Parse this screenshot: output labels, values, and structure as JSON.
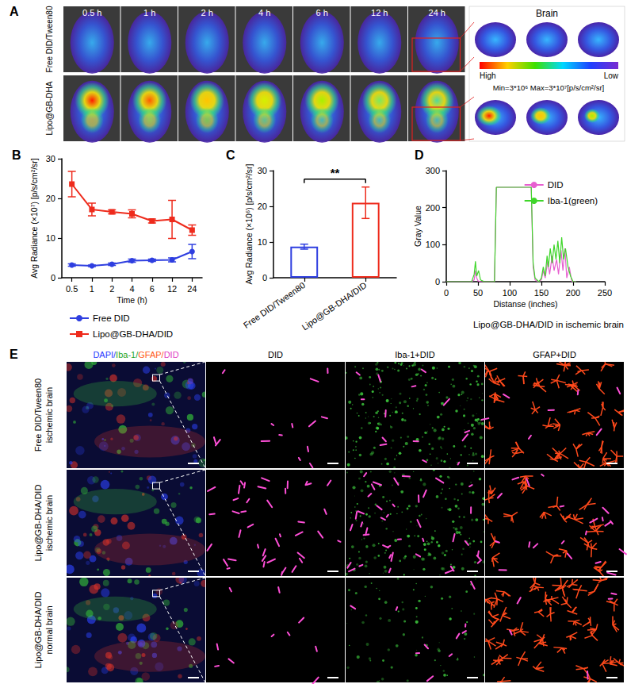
{
  "chart_data": [
    {
      "type": "line",
      "title": "B",
      "x_label": "Time (h)",
      "y_label": "Avg Radiance (×10⁷) [p/s/cm²/sr]",
      "categories": [
        "0.5",
        "1",
        "2",
        "4",
        "6",
        "12",
        "24"
      ],
      "series": [
        {
          "name": "Free DID",
          "color": "#2f3fe0",
          "marker": "circle",
          "values": [
            3.2,
            3.0,
            3.4,
            4.3,
            4.4,
            4.5,
            6.6
          ],
          "errors": [
            0.3,
            0.2,
            0.3,
            0.4,
            0.3,
            0.5,
            1.8
          ]
        },
        {
          "name": "Lipo@GB-DHA/DID",
          "color": "#ee2b1c",
          "marker": "square",
          "values": [
            23.6,
            17.2,
            16.6,
            16.1,
            14.3,
            14.7,
            12.0
          ],
          "errors": [
            3.2,
            1.6,
            0.5,
            1.0,
            0.5,
            4.8,
            1.3
          ]
        }
      ],
      "ylim": [
        0,
        30
      ],
      "yticks": [
        0,
        10,
        20,
        30
      ],
      "grid": false,
      "legend": "bottom"
    },
    {
      "type": "bar",
      "title": "C",
      "y_label": "Avg Radiance (×10⁶) [p/s/cm²/sr]",
      "categories": [
        "Free DID/Tween80",
        "Lipo@GB-DHA/DID"
      ],
      "values": [
        8.7,
        21.0
      ],
      "errors": [
        0.7,
        4.4
      ],
      "colors": [
        "#2f3fe0",
        "#ee2b1c"
      ],
      "ylim": [
        0,
        30
      ],
      "yticks": [
        0,
        10,
        20,
        30
      ],
      "grid": false,
      "annotations": [
        "**"
      ]
    },
    {
      "type": "line",
      "title": "D",
      "x_label": "Distanse (inches)",
      "y_label": "Gray Value",
      "series": [
        {
          "name": "DID",
          "color": "#e75fd0",
          "marker": "none",
          "x": [
            0,
            40,
            44,
            46,
            48,
            50,
            55,
            70,
            76,
            79,
            134,
            137,
            140,
            145,
            150,
            153,
            156,
            160,
            163,
            167,
            170,
            174,
            177,
            181,
            184,
            187,
            190,
            194,
            198,
            205
          ],
          "values": [
            0,
            0,
            5,
            30,
            10,
            2,
            0,
            0,
            0,
            255,
            255,
            40,
            5,
            0,
            5,
            30,
            10,
            55,
            20,
            70,
            30,
            60,
            20,
            85,
            30,
            90,
            10,
            40,
            0,
            0
          ]
        },
        {
          "name": "Iba-1(green)",
          "color": "#3fd62a",
          "marker": "none",
          "x": [
            0,
            40,
            44,
            46,
            48,
            51,
            54,
            60,
            76,
            79,
            134,
            137,
            140,
            146,
            150,
            153,
            156,
            159,
            161,
            164,
            167,
            170,
            173,
            176,
            179,
            182,
            185,
            188,
            192,
            196,
            200,
            205
          ],
          "values": [
            0,
            0,
            20,
            55,
            15,
            30,
            5,
            0,
            0,
            255,
            255,
            50,
            10,
            0,
            10,
            40,
            15,
            70,
            40,
            90,
            50,
            100,
            60,
            110,
            50,
            120,
            60,
            90,
            40,
            15,
            0,
            0
          ]
        }
      ],
      "xlim": [
        0,
        250
      ],
      "xticks": [
        0,
        50,
        100,
        150,
        200,
        250
      ],
      "ylim": [
        0,
        300
      ],
      "yticks": [
        0,
        100,
        200,
        300
      ],
      "grid": false,
      "legend": "upper right",
      "annotations": [
        "Lipo@GB-DHA/DID in ischemic brain"
      ]
    }
  ],
  "imaging": {
    "title": "A",
    "columns": [
      "0.5 h",
      "1 h",
      "2 h",
      "4 h",
      "6 h",
      "12 h",
      "24 h"
    ],
    "rows": [
      "Free DID/Tween80",
      "Lipo@GB-DHA"
    ],
    "brain_title": "Brain",
    "colorbar": {
      "high": "High",
      "low": "Low",
      "range_text": "Min=3*10⁶ Max=3*10⁷[p/s/cm²/sr]"
    }
  },
  "microscopy": {
    "title": "E",
    "columns": [
      [
        {
          "text": "DAPI/",
          "color": "#2b3cff"
        },
        {
          "text": "Iba-1/",
          "color": "#1fa51f"
        },
        {
          "text": "GFAP/",
          "color": "#ff5a1c"
        },
        {
          "text": "DID",
          "color": "#e23fc4"
        }
      ],
      [
        {
          "text": "DID",
          "color": "#000000"
        }
      ],
      [
        {
          "text": "Iba-1",
          "color": "#000000"
        },
        {
          "text": "+DID",
          "color": "#000000"
        }
      ],
      [
        {
          "text": "GFAP",
          "color": "#000000"
        },
        {
          "text": "+DID",
          "color": "#000000"
        }
      ]
    ],
    "rows": [
      [
        "Free DID/Tween80",
        "ischemic brain"
      ],
      [
        "Lipo@GB-DHA/DID",
        "ischemic brain"
      ],
      [
        "Lipo@GB-DHA/DID",
        "normal brain"
      ]
    ]
  }
}
